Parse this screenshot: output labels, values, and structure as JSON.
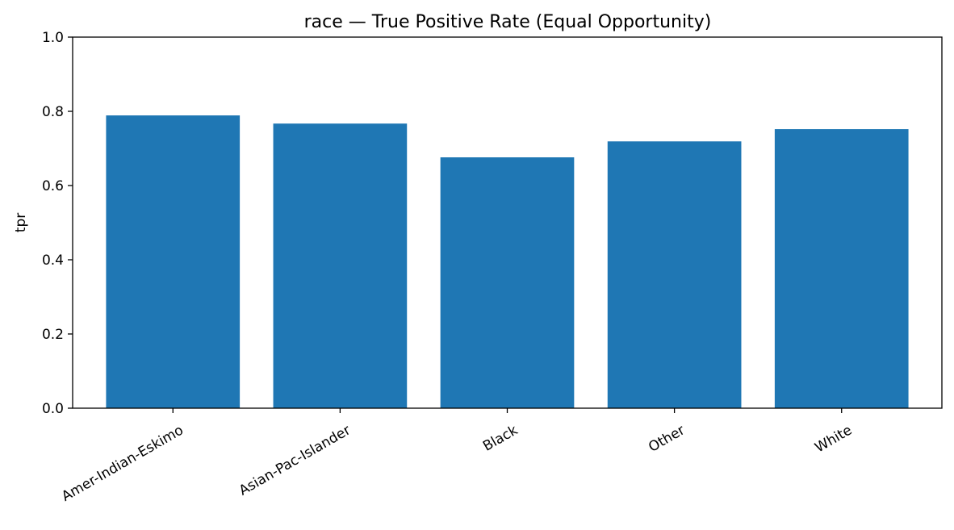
{
  "chart_data": {
    "type": "bar",
    "title": "race — True Positive Rate (Equal Opportunity)",
    "xlabel": "",
    "ylabel": "tpr",
    "categories": [
      "Amer-Indian-Eskimo",
      "Asian-Pac-Islander",
      "Black",
      "Other",
      "White"
    ],
    "values": [
      0.789,
      0.767,
      0.676,
      0.719,
      0.752
    ],
    "ylim": [
      0,
      1.0
    ],
    "yticks": [
      0.0,
      0.2,
      0.4,
      0.6,
      0.8,
      1.0
    ],
    "ytick_labels": [
      "0.0",
      "0.2",
      "0.4",
      "0.6",
      "0.8",
      "1.0"
    ],
    "grid": false,
    "legend": "none",
    "bar_color": "#1f77b4"
  }
}
